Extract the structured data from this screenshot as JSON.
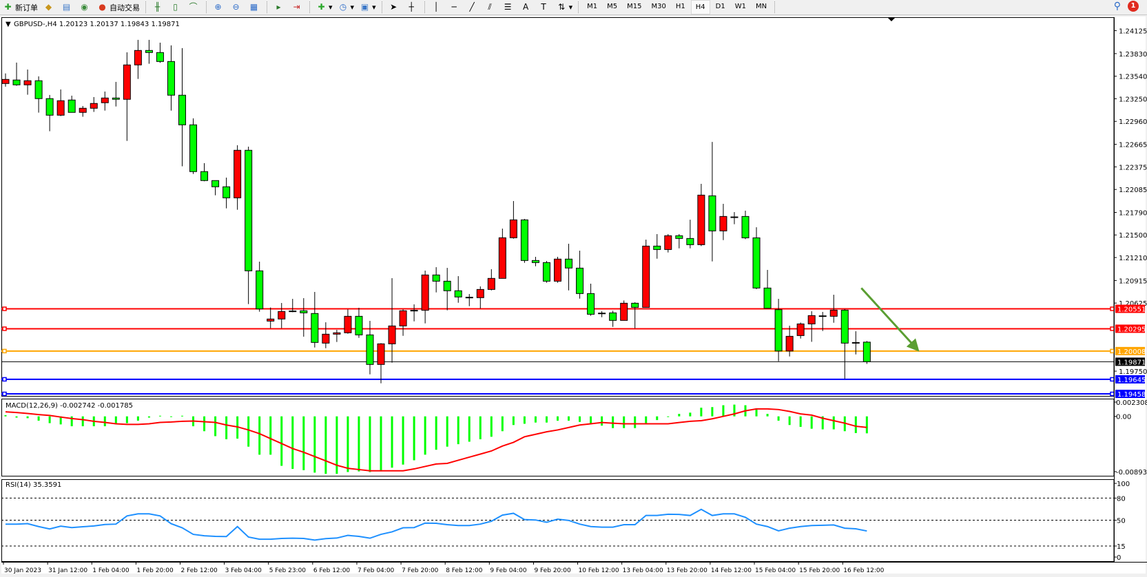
{
  "toolbar": {
    "new_order": "新订单",
    "auto_trading": "自动交易",
    "timeframes": [
      "M1",
      "M5",
      "M15",
      "M30",
      "H1",
      "H4",
      "D1",
      "W1",
      "MN"
    ],
    "active_timeframe": "H4",
    "text_tool": "A",
    "notification_count": "1",
    "icons": [
      "new-order-icon",
      "metaeditor-icon",
      "market-icon",
      "signals-icon",
      "auto-trading-icon",
      "bar-chart-icon",
      "candlestick-icon",
      "line-chart-icon",
      "zoom-in-icon",
      "zoom-out-icon",
      "tile-windows-icon",
      "auto-scroll-icon",
      "chart-shift-icon",
      "indicators-icon",
      "periods-icon",
      "templates-icon",
      "cursor-icon",
      "crosshair-icon",
      "vertical-line-icon",
      "horizontal-line-icon",
      "trendline-icon",
      "equidistant-channel-icon",
      "fibonacci-icon",
      "text-icon",
      "text-label-icon",
      "arrows-icon",
      "search-icon",
      "notification-icon"
    ]
  },
  "chart": {
    "header": "GBPUSD-,H4  1.20123 1.20137 1.19843 1.19871",
    "colors": {
      "bull": "#ff0000",
      "bear": "#00ff00",
      "wick": "#000000",
      "macd_hist": "#00ff00",
      "macd_signal": "#ff0000",
      "rsi": "#1e90ff",
      "arrow": "#5a9e32"
    }
  },
  "chart_data": {
    "type": "candlestick",
    "symbol": "GBPUSD-",
    "period": "H4",
    "ylim": [
      1.19423,
      1.24298
    ],
    "price_ticks": [
      "1.24125",
      "1.23830",
      "1.23540",
      "1.23250",
      "1.22960",
      "1.22665",
      "1.22375",
      "1.22085",
      "1.21790",
      "1.21500",
      "1.21210",
      "1.20915",
      "1.20625",
      "1.19750"
    ],
    "x_labels": [
      "30 Jan 2023",
      "31 Jan 12:00",
      "1 Feb 04:00",
      "1 Feb 20:00",
      "2 Feb 12:00",
      "3 Feb 04:00",
      "5 Feb 23:00",
      "6 Feb 12:00",
      "7 Feb 04:00",
      "7 Feb 20:00",
      "8 Feb 12:00",
      "9 Feb 04:00",
      "9 Feb 20:00",
      "10 Feb 12:00",
      "13 Feb 04:00",
      "13 Feb 20:00",
      "14 Feb 12:00",
      "15 Feb 04:00",
      "15 Feb 20:00",
      "16 Feb 12:00"
    ],
    "ohlc": [
      [
        1.23446,
        1.23576,
        1.23405,
        1.23499
      ],
      [
        1.23491,
        1.23715,
        1.23417,
        1.23429
      ],
      [
        1.23429,
        1.23626,
        1.23302,
        1.23482
      ],
      [
        1.23482,
        1.23538,
        1.23072,
        1.23252
      ],
      [
        1.23252,
        1.23299,
        1.22833,
        1.23039
      ],
      [
        1.23039,
        1.2337,
        1.23027,
        1.23225
      ],
      [
        1.23234,
        1.2329,
        1.23075,
        1.23075
      ],
      [
        1.23075,
        1.23157,
        1.23019,
        1.23128
      ],
      [
        1.23128,
        1.23272,
        1.23081,
        1.2319
      ],
      [
        1.23199,
        1.23343,
        1.23098,
        1.2326
      ],
      [
        1.2326,
        1.23467,
        1.23151,
        1.23243
      ],
      [
        1.23243,
        1.23847,
        1.22709,
        1.23685
      ],
      [
        1.23685,
        1.24007,
        1.23505,
        1.23871
      ],
      [
        1.23871,
        1.24007,
        1.237,
        1.23844
      ],
      [
        1.23844,
        1.23971,
        1.23712,
        1.23729
      ],
      [
        1.23729,
        1.23936,
        1.23098,
        1.23296
      ],
      [
        1.23296,
        1.23901,
        1.22382,
        1.22915
      ],
      [
        1.22915,
        1.22998,
        1.22284,
        1.22314
      ],
      [
        1.22314,
        1.22423,
        1.2219,
        1.22199
      ],
      [
        1.22199,
        1.22199,
        1.2201,
        1.22119
      ],
      [
        1.22119,
        1.22237,
        1.21842,
        1.21977
      ],
      [
        1.21977,
        1.22653,
        1.21824,
        1.22588
      ],
      [
        1.22588,
        1.22635,
        1.20612,
        1.21039
      ],
      [
        1.21039,
        1.21157,
        1.20514,
        1.2055
      ],
      [
        1.20393,
        1.20568,
        1.20302,
        1.2042
      ],
      [
        1.2042,
        1.20626,
        1.20302,
        1.20517
      ],
      [
        1.20517,
        1.20679,
        1.20508,
        1.20523
      ],
      [
        1.20526,
        1.20688,
        1.20193,
        1.20499
      ],
      [
        1.20491,
        1.20768,
        1.20054,
        1.20119
      ],
      [
        1.2011,
        1.20378,
        1.20045,
        1.20225
      ],
      [
        1.20225,
        1.20281,
        1.20125,
        1.20243
      ],
      [
        1.20243,
        1.20544,
        1.20231,
        1.20455
      ],
      [
        1.20455,
        1.20564,
        1.20178,
        1.20216
      ],
      [
        1.20216,
        1.20396,
        1.19709,
        1.19836
      ],
      [
        1.19836,
        1.2011,
        1.19594,
        1.20101
      ],
      [
        1.20101,
        1.20945,
        1.19859,
        1.20331
      ],
      [
        1.20331,
        1.20544,
        1.20204,
        1.20526
      ],
      [
        1.20526,
        1.20608,
        1.2039,
        1.20532
      ],
      [
        1.20532,
        1.21042,
        1.20364,
        1.20986
      ],
      [
        1.20986,
        1.21086,
        1.20762,
        1.20906
      ],
      [
        1.20906,
        1.21077,
        1.20532,
        1.20783
      ],
      [
        1.20783,
        1.20971,
        1.20629,
        1.20703
      ],
      [
        1.207,
        1.20741,
        1.20585,
        1.207
      ],
      [
        1.20694,
        1.20839,
        1.20555,
        1.208
      ],
      [
        1.208,
        1.2106,
        1.20788,
        1.20942
      ],
      [
        1.20942,
        1.21582,
        1.20942,
        1.21464
      ],
      [
        1.21464,
        1.21936,
        1.21452,
        1.21694
      ],
      [
        1.21694,
        1.21706,
        1.21142,
        1.21172
      ],
      [
        1.21172,
        1.21219,
        1.21098,
        1.21145
      ],
      [
        1.21145,
        1.21166,
        1.20886,
        1.20906
      ],
      [
        1.20906,
        1.21219,
        1.20886,
        1.2119
      ],
      [
        1.2119,
        1.21387,
        1.20788,
        1.21075
      ],
      [
        1.21074,
        1.21298,
        1.20682,
        1.20747
      ],
      [
        1.20747,
        1.20874,
        1.20461,
        1.20481
      ],
      [
        1.20496,
        1.2052,
        1.20443,
        1.20496
      ],
      [
        1.20499,
        1.20526,
        1.20319,
        1.20402
      ],
      [
        1.20402,
        1.20658,
        1.20402,
        1.20623
      ],
      [
        1.20623,
        1.20635,
        1.20301,
        1.2057
      ],
      [
        1.2057,
        1.2144,
        1.2057,
        1.21357
      ],
      [
        1.21357,
        1.21511,
        1.21195,
        1.21313
      ],
      [
        1.21313,
        1.21511,
        1.21275,
        1.2149
      ],
      [
        1.2149,
        1.21511,
        1.21328,
        1.21455
      ],
      [
        1.21455,
        1.21696,
        1.21328,
        1.21375
      ],
      [
        1.21375,
        1.22157,
        1.21357,
        1.22012
      ],
      [
        1.22003,
        1.22696,
        1.2116,
        1.21552
      ],
      [
        1.21552,
        1.219,
        1.21434,
        1.21738
      ],
      [
        1.21732,
        1.21794,
        1.21638,
        1.21732
      ],
      [
        1.21738,
        1.21812,
        1.21446,
        1.21463
      ],
      [
        1.21463,
        1.21599,
        1.20803,
        1.20818
      ],
      [
        1.20818,
        1.21051,
        1.20558,
        1.20558
      ],
      [
        1.2054,
        1.20679,
        1.19877,
        1.20009
      ],
      [
        1.20009,
        1.20334,
        1.19939,
        1.20198
      ],
      [
        1.20207,
        1.20375,
        1.20169,
        1.20357
      ],
      [
        1.20357,
        1.2052,
        1.20127,
        1.20464
      ],
      [
        1.20461,
        1.20511,
        1.20266,
        1.20461
      ],
      [
        1.20455,
        1.20732,
        1.20372,
        1.20534
      ],
      [
        1.20534,
        1.20549,
        1.19652,
        1.2011
      ],
      [
        1.20118,
        1.20263,
        1.19965,
        1.20118
      ],
      [
        1.20123,
        1.20137,
        1.19843,
        1.19871
      ]
    ],
    "hlines": [
      {
        "price": "1.20551",
        "color": "#ff0000"
      },
      {
        "price": "1.20295",
        "color": "#ff0000"
      },
      {
        "price": "1.20008",
        "color": "#ffa500"
      },
      {
        "price": "1.19871",
        "color": "#000000"
      },
      {
        "price": "1.19645",
        "color": "#0000ff"
      },
      {
        "price": "1.19458",
        "color": "#0000ff"
      }
    ],
    "arrow": {
      "from": {
        "bar": 77.5,
        "price": 1.20818
      },
      "to": {
        "bar": 82.5,
        "price": 1.2004
      }
    },
    "macd": {
      "label": "MACD(12,26,9) -0.002742 -0.001785",
      "ylim": [
        -0.00972,
        0.00286
      ],
      "ticks": [
        "0.002308",
        "0.00",
        "-0.008939"
      ],
      "histogram": [
        0.0002,
        -0.0002,
        -0.0003,
        -0.0007,
        -0.0011,
        -0.0013,
        -0.0016,
        -0.0016,
        -0.0016,
        -0.0016,
        -0.0013,
        -0.0011,
        -0.0007,
        -0.0002,
        0.0001,
        -0.0001,
        0.0001,
        -0.0016,
        -0.0024,
        -0.0032,
        -0.0037,
        -0.0036,
        -0.0049,
        -0.0062,
        -0.0062,
        -0.008,
        -0.0085,
        -0.0087,
        -0.0091,
        -0.0093,
        -0.0093,
        -0.009,
        -0.0089,
        -0.009,
        -0.0089,
        -0.0083,
        -0.0078,
        -0.0071,
        -0.0062,
        -0.0054,
        -0.0049,
        -0.0045,
        -0.0041,
        -0.0037,
        -0.0033,
        -0.0024,
        -0.0014,
        -0.0012,
        -0.001,
        -0.001,
        -0.0007,
        -0.0007,
        -0.0009,
        -0.0012,
        -0.0015,
        -0.0019,
        -0.0019,
        -0.0019,
        -0.0011,
        -0.0006,
        -0.0001,
        0.0004,
        0.0006,
        0.0014,
        0.0015,
        0.0018,
        0.0019,
        0.0018,
        0.0011,
        0.0004,
        -0.0007,
        -0.0014,
        -0.0017,
        -0.002,
        -0.0021,
        -0.0021,
        -0.0024,
        -0.0027,
        -0.002742
      ],
      "signal": [
        0.00073,
        0.00062,
        0.00047,
        0.00029,
        0.00015,
        -0.00011,
        -0.00036,
        -0.00054,
        -0.0008,
        -0.00098,
        -0.0012,
        -0.0013,
        -0.0013,
        -0.0012,
        -0.00098,
        -0.00091,
        -0.0008,
        -0.00076,
        -0.00087,
        -0.00098,
        -0.0014,
        -0.0017,
        -0.0022,
        -0.0028,
        -0.0036,
        -0.0044,
        -0.0052,
        -0.0058,
        -0.0065,
        -0.0072,
        -0.0079,
        -0.0084,
        -0.0086,
        -0.0088,
        -0.0088,
        -0.0088,
        -0.0088,
        -0.0085,
        -0.0081,
        -0.0077,
        -0.0076,
        -0.0071,
        -0.0066,
        -0.0061,
        -0.0056,
        -0.0048,
        -0.0042,
        -0.0033,
        -0.0029,
        -0.0025,
        -0.0022,
        -0.0018,
        -0.0014,
        -0.0012,
        -0.001,
        -0.0011,
        -0.0012,
        -0.0012,
        -0.0012,
        -0.0012,
        -0.0012,
        -0.001,
        -0.0008,
        -0.0007,
        -0.0004,
        0.0,
        0.0004,
        0.0009,
        0.0012,
        0.0012,
        0.0011,
        0.0008,
        0.0004,
        0.0002,
        -0.0003,
        -0.0007,
        -0.0011,
        -0.0016,
        -0.001785
      ]
    },
    "rsi": {
      "label": "RSI(14) 35.3591",
      "ylim": [
        -6.5,
        105.6
      ],
      "ticks": [
        "100",
        "80",
        "50",
        "15",
        "0"
      ],
      "levels": [
        80,
        50,
        15
      ],
      "values": [
        44.7,
        44.7,
        45.3,
        41.4,
        38.1,
        41.9,
        40.0,
        41.1,
        42.2,
        44.2,
        44.7,
        55.8,
        58.6,
        58.6,
        55.8,
        45.3,
        39.7,
        30.8,
        28.9,
        28.1,
        27.8,
        41.4,
        27.2,
        24.2,
        24.2,
        25.3,
        25.6,
        25.3,
        23.1,
        25.0,
        25.8,
        29.4,
        28.1,
        25.6,
        30.8,
        34.2,
        39.7,
        40.0,
        46.1,
        45.8,
        43.9,
        42.8,
        42.8,
        44.7,
        48.6,
        56.9,
        59.4,
        50.8,
        50.3,
        47.2,
        51.4,
        49.7,
        44.7,
        41.4,
        40.6,
        40.6,
        43.9,
        43.9,
        56.4,
        56.4,
        58.1,
        57.8,
        56.4,
        64.7,
        56.4,
        58.6,
        58.6,
        53.9,
        44.7,
        41.4,
        35.6,
        39.2,
        41.4,
        42.8,
        43.1,
        43.6,
        39.2,
        38.3,
        35.3591
      ]
    }
  }
}
